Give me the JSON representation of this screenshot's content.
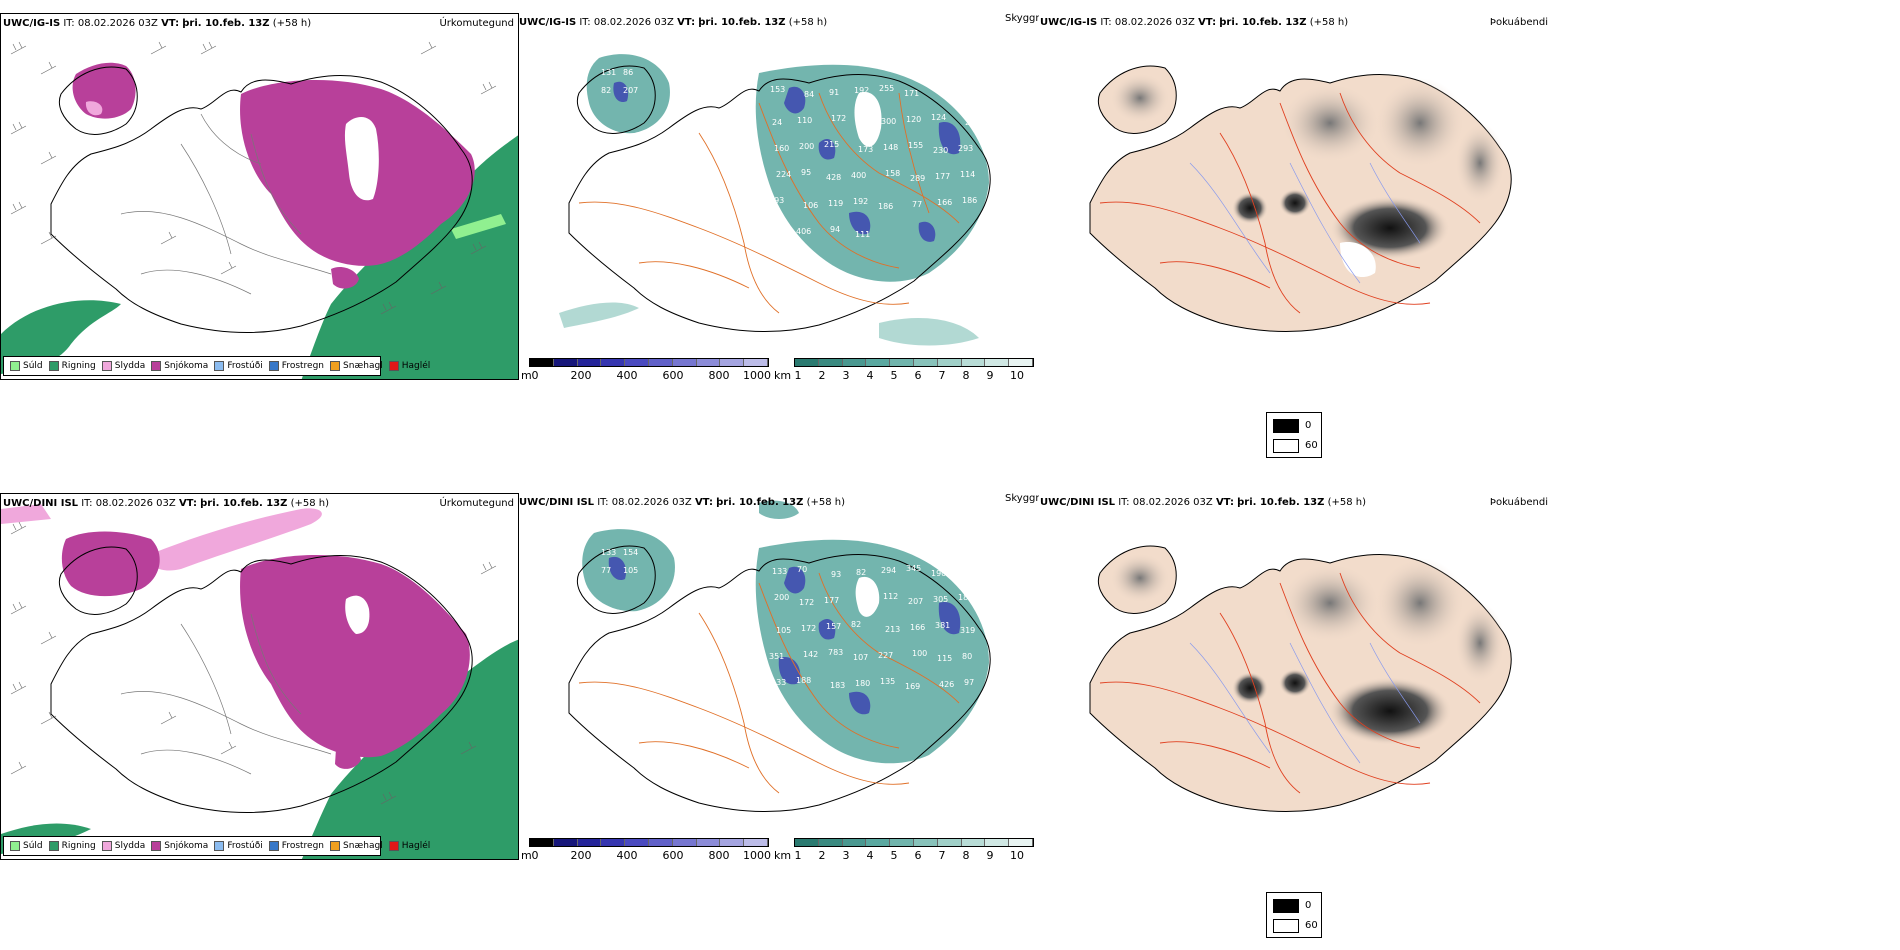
{
  "rows": [
    {
      "model": "UWC/IG-IS",
      "it_label": "IT:",
      "it_value": "08.02.2026 03Z",
      "vt_label": "VT:",
      "vt_value": "þri. 10.feb. 13Z",
      "lead": "(+58 h)"
    },
    {
      "model": "UWC/DINI ISL",
      "it_label": "IT:",
      "it_value": "08.02.2026 03Z",
      "vt_label": "VT:",
      "vt_value": "þri. 10.feb. 13Z",
      "lead": "(+58 h)"
    }
  ],
  "panel_titles": {
    "precip": "Úrkomutegund",
    "visibility": "Skyggni",
    "fog": "Þokuábendi"
  },
  "precip_legend": [
    {
      "label": "Súld",
      "color": "#90f090"
    },
    {
      "label": "Rigning",
      "color": "#2e9c68"
    },
    {
      "label": "Slydda",
      "color": "#f0a8dc"
    },
    {
      "label": "Snjókoma",
      "color": "#b8409a"
    },
    {
      "label": "Frostúði",
      "color": "#8cbcf0"
    },
    {
      "label": "Frostregn",
      "color": "#3878c8"
    },
    {
      "label": "Snæhagl",
      "color": "#f0a020"
    },
    {
      "label": "Haglél",
      "color": "#e01818"
    }
  ],
  "elev_bar": {
    "unit": "m",
    "ticks": [
      "0",
      "200",
      "400",
      "600",
      "800",
      "1000"
    ]
  },
  "vis_bar": {
    "unit": "km",
    "ticks": [
      "1",
      "2",
      "3",
      "4",
      "5",
      "6",
      "7",
      "8",
      "9",
      "10"
    ]
  },
  "fog_legend": {
    "black": "0",
    "white": "60"
  },
  "colors": {
    "rain": "#2e9c68",
    "snow": "#b8409a",
    "sleet": "#f0a8dc",
    "drizzle": "#90f090",
    "teal": "#5aa8a0",
    "blue": "#3a40b0",
    "land_fog": "#f2dccb",
    "roads": "#e07028"
  },
  "vis_labels_top": [
    "131",
    "86",
    "82",
    "207",
    "153",
    "84",
    "91",
    "192",
    "255",
    "171",
    "272",
    "213",
    "24",
    "110",
    "172",
    "94",
    "300",
    "120",
    "124",
    "217",
    "160",
    "200",
    "215",
    "173",
    "148",
    "155",
    "230",
    "293",
    "224",
    "95",
    "428",
    "400",
    "158",
    "289",
    "177",
    "114",
    "193",
    "106",
    "119",
    "192",
    "186",
    "77",
    "166",
    "186",
    "126",
    "406",
    "94",
    "111"
  ],
  "vis_labels_bottom": [
    "133",
    "154",
    "77",
    "105",
    "133",
    "70",
    "93",
    "82",
    "294",
    "345",
    "190",
    "202",
    "200",
    "172",
    "177",
    "128",
    "112",
    "207",
    "305",
    "185",
    "105",
    "172",
    "157",
    "82",
    "213",
    "166",
    "381",
    "319",
    "351",
    "142",
    "783",
    "107",
    "227",
    "100",
    "115",
    "80",
    "133",
    "188",
    "183",
    "180",
    "135",
    "169",
    "426",
    "97",
    "111"
  ]
}
